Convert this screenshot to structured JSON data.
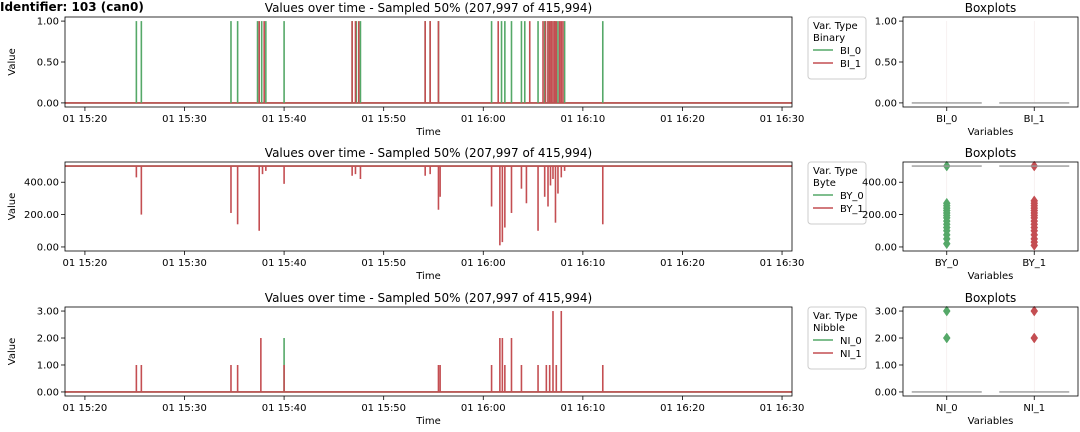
{
  "figure_title": "Identifier: 103 (can0)",
  "colors": {
    "green": "#55a868",
    "red": "#c44e52",
    "box": "#999999"
  },
  "chart_data": [
    {
      "id": "binary-time",
      "type": "line",
      "title": "Values over time - Sampled 50% (207,997 of 415,994)",
      "xlabel": "Time",
      "ylabel": "Value",
      "xlim": [
        "01 15:18",
        "01 16:31"
      ],
      "ylim": [
        -0.05,
        1.05
      ],
      "x_ticks": [
        "01 15:20",
        "01 15:30",
        "01 15:40",
        "01 15:50",
        "01 16:00",
        "01 16:10",
        "01 16:20",
        "01 16:30"
      ],
      "y_ticks": [
        "0.00",
        "0.50",
        "1.00"
      ],
      "legend": {
        "title": "Var. Type",
        "subtitle": "Binary",
        "placement": "right"
      },
      "baseline": 0,
      "series": [
        {
          "name": "BI_0",
          "color": "#55a868",
          "spikes": [
            [
              "01 15:25:10",
              1
            ],
            [
              "01 15:25:40",
              1
            ],
            [
              "01 15:34:40",
              1
            ],
            [
              "01 15:35:20",
              1
            ],
            [
              "01 15:37:20",
              1
            ],
            [
              "01 15:37:45",
              1
            ],
            [
              "01 15:38:10",
              1
            ],
            [
              "01 15:40:00",
              1
            ],
            [
              "01 15:46:50",
              1
            ],
            [
              "01 15:47:15",
              1
            ],
            [
              "01 15:47:40",
              1
            ],
            [
              "01 15:54:10",
              1
            ],
            [
              "01 15:54:40",
              1
            ],
            [
              "01 15:55:30",
              1
            ],
            [
              "01 16:00:50",
              1
            ],
            [
              "01 16:01:50",
              1
            ],
            [
              "01 16:02:10",
              1
            ],
            [
              "01 16:02:50",
              1
            ],
            [
              "01 16:03:50",
              1
            ],
            [
              "01 16:04:10",
              1
            ],
            [
              "01 16:05:30",
              1
            ],
            [
              "01 16:06:10",
              1
            ],
            [
              "01 16:06:30",
              1
            ],
            [
              "01 16:06:50",
              1
            ],
            [
              "01 16:07:10",
              1
            ],
            [
              "01 16:07:30",
              1
            ],
            [
              "01 16:08:10",
              1
            ],
            [
              "01 16:12:00",
              1
            ]
          ]
        },
        {
          "name": "BI_1",
          "color": "#c44e52",
          "spikes": [
            [
              "01 15:37:30",
              1
            ],
            [
              "01 15:38:00",
              1
            ],
            [
              "01 15:46:50",
              1
            ],
            [
              "01 15:47:10",
              1
            ],
            [
              "01 15:47:30",
              1
            ],
            [
              "01 15:54:10",
              1
            ],
            [
              "01 15:54:40",
              1
            ],
            [
              "01 15:55:30",
              1
            ],
            [
              "01 16:01:30",
              1
            ],
            [
              "01 16:04:40",
              1
            ],
            [
              "01 16:06:00",
              1
            ],
            [
              "01 16:06:15",
              1
            ],
            [
              "01 16:06:30",
              1
            ],
            [
              "01 16:06:40",
              1
            ],
            [
              "01 16:06:50",
              1
            ],
            [
              "01 16:07:00",
              1
            ],
            [
              "01 16:07:10",
              1
            ],
            [
              "01 16:07:20",
              1
            ],
            [
              "01 16:07:40",
              1
            ],
            [
              "01 16:07:50",
              1
            ],
            [
              "01 16:08:00",
              1
            ]
          ]
        }
      ]
    },
    {
      "id": "binary-box",
      "type": "box",
      "title": "Boxplots",
      "xlabel": "Variables",
      "categories": [
        "BI_0",
        "BI_1"
      ],
      "ylim": [
        -0.05,
        1.05
      ],
      "y_ticks": [
        "0.00",
        "0.50",
        "1.00"
      ],
      "median": [
        0,
        0
      ],
      "outliers": [
        [],
        []
      ]
    },
    {
      "id": "byte-time",
      "type": "line",
      "title": "Values over time - Sampled 50% (207,997 of 415,994)",
      "xlabel": "Time",
      "ylabel": "Value",
      "xlim": [
        "01 15:18",
        "01 16:31"
      ],
      "ylim": [
        -25,
        525
      ],
      "x_ticks": [
        "01 15:20",
        "01 15:30",
        "01 15:40",
        "01 15:50",
        "01 16:00",
        "01 16:10",
        "01 16:20",
        "01 16:30"
      ],
      "y_ticks": [
        "0.00",
        "200.00",
        "400.00"
      ],
      "legend": {
        "title": "Var. Type",
        "subtitle": "Byte",
        "placement": "right"
      },
      "baseline": 500,
      "series": [
        {
          "name": "BY_0",
          "color": "#55a868",
          "spikes": []
        },
        {
          "name": "BY_1",
          "color": "#c44e52",
          "spikes": [
            [
              "01 15:25:10",
              430
            ],
            [
              "01 15:25:40",
              200
            ],
            [
              "01 15:34:40",
              210
            ],
            [
              "01 15:35:20",
              140
            ],
            [
              "01 15:37:30",
              100
            ],
            [
              "01 15:37:50",
              450
            ],
            [
              "01 15:38:10",
              470
            ],
            [
              "01 15:40:00",
              390
            ],
            [
              "01 15:46:50",
              440
            ],
            [
              "01 15:47:10",
              450
            ],
            [
              "01 15:47:40",
              420
            ],
            [
              "01 15:54:10",
              440
            ],
            [
              "01 15:54:40",
              450
            ],
            [
              "01 15:55:30",
              230
            ],
            [
              "01 15:55:40",
              310
            ],
            [
              "01 16:00:50",
              250
            ],
            [
              "01 16:01:40",
              10
            ],
            [
              "01 16:01:55",
              30
            ],
            [
              "01 16:02:10",
              120
            ],
            [
              "01 16:02:50",
              210
            ],
            [
              "01 16:03:50",
              360
            ],
            [
              "01 16:04:20",
              270
            ],
            [
              "01 16:05:30",
              100
            ],
            [
              "01 16:06:10",
              310
            ],
            [
              "01 16:06:30",
              250
            ],
            [
              "01 16:06:45",
              380
            ],
            [
              "01 16:07:00",
              420
            ],
            [
              "01 16:07:15",
              150
            ],
            [
              "01 16:07:30",
              330
            ],
            [
              "01 16:07:50",
              430
            ],
            [
              "01 16:08:10",
              470
            ],
            [
              "01 16:12:00",
              140
            ]
          ]
        }
      ]
    },
    {
      "id": "byte-box",
      "type": "box",
      "title": "Boxplots",
      "xlabel": "Variables",
      "categories": [
        "BY_0",
        "BY_1"
      ],
      "ylim": [
        -25,
        525
      ],
      "y_ticks": [
        "0.00",
        "200.00",
        "400.00"
      ],
      "median": [
        500,
        500
      ],
      "outliers": [
        [
          500,
          270,
          255,
          240,
          225,
          210,
          195,
          180,
          160,
          140,
          120,
          100,
          75,
          50,
          20
        ],
        [
          500,
          285,
          270,
          255,
          240,
          225,
          210,
          195,
          180,
          160,
          140,
          120,
          100,
          75,
          50,
          30,
          10
        ]
      ]
    },
    {
      "id": "nibble-time",
      "type": "line",
      "title": "Values over time - Sampled 50% (207,997 of 415,994)",
      "xlabel": "Time",
      "ylabel": "Value",
      "xlim": [
        "01 15:18",
        "01 16:31"
      ],
      "ylim": [
        -0.15,
        3.15
      ],
      "x_ticks": [
        "01 15:20",
        "01 15:30",
        "01 15:40",
        "01 15:50",
        "01 16:00",
        "01 16:10",
        "01 16:20",
        "01 16:30"
      ],
      "y_ticks": [
        "0.00",
        "1.00",
        "2.00",
        "3.00"
      ],
      "legend": {
        "title": "Var. Type",
        "subtitle": "Nibble",
        "placement": "right"
      },
      "baseline": 0,
      "series": [
        {
          "name": "NI_0",
          "color": "#55a868",
          "spikes": [
            [
              "01 15:40:00",
              2
            ]
          ]
        },
        {
          "name": "NI_1",
          "color": "#c44e52",
          "spikes": [
            [
              "01 15:25:10",
              1
            ],
            [
              "01 15:25:40",
              1
            ],
            [
              "01 15:34:40",
              1
            ],
            [
              "01 15:35:20",
              1
            ],
            [
              "01 15:37:40",
              2
            ],
            [
              "01 15:40:00",
              1
            ],
            [
              "01 15:55:30",
              1
            ],
            [
              "01 15:55:40",
              1
            ],
            [
              "01 16:00:50",
              1
            ],
            [
              "01 16:01:40",
              2
            ],
            [
              "01 16:01:55",
              2
            ],
            [
              "01 16:02:10",
              1
            ],
            [
              "01 16:02:50",
              2
            ],
            [
              "01 16:03:50",
              1
            ],
            [
              "01 16:05:30",
              1
            ],
            [
              "01 16:06:20",
              1
            ],
            [
              "01 16:06:40",
              1
            ],
            [
              "01 16:07:00",
              3
            ],
            [
              "01 16:07:20",
              1
            ],
            [
              "01 16:07:50",
              3
            ],
            [
              "01 16:12:00",
              1
            ]
          ]
        }
      ]
    },
    {
      "id": "nibble-box",
      "type": "box",
      "title": "Boxplots",
      "xlabel": "Variables",
      "categories": [
        "NI_0",
        "NI_1"
      ],
      "ylim": [
        -0.15,
        3.15
      ],
      "y_ticks": [
        "0.00",
        "1.00",
        "2.00",
        "3.00"
      ],
      "median": [
        0,
        0
      ],
      "outliers": [
        [
          3,
          2
        ],
        [
          3,
          2
        ]
      ]
    }
  ]
}
